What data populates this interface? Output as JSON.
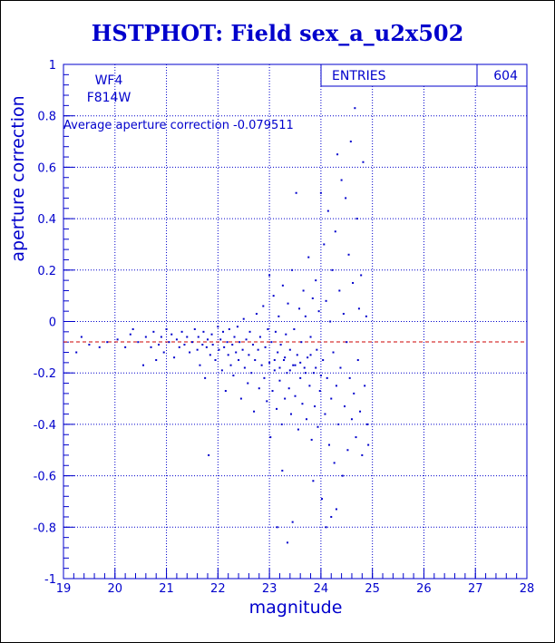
{
  "title": "HSTPHOT: Field sex_a_u2x502",
  "colors": {
    "axis": "#0000cc",
    "grid": "#0000cc",
    "points": "#0000cc",
    "average_line": "#cc0000",
    "background": "#ffffff"
  },
  "chart_data": {
    "type": "scatter",
    "title": "HSTPHOT: Field sex_a_u2x502",
    "xlabel": "magnitude",
    "ylabel": "aperture correction",
    "xlim": [
      19,
      28
    ],
    "ylim": [
      -1,
      1
    ],
    "x_ticks": [
      "19",
      "20",
      "21",
      "22",
      "23",
      "24",
      "25",
      "26",
      "27",
      "28"
    ],
    "y_ticks": [
      "-1",
      "-0.8",
      "-0.6",
      "-0.4",
      "-0.2",
      "0",
      "0.2",
      "0.4",
      "0.6",
      "0.8",
      "1"
    ],
    "grid": true,
    "annotations": {
      "chip": "WF4",
      "filter": "F814W",
      "average_text": "Average aperture correction -0.079511"
    },
    "stats": {
      "label": "ENTRIES",
      "value": "604"
    },
    "average_line_y": -0.079511,
    "points": [
      [
        19.25,
        -0.12
      ],
      [
        19.35,
        -0.06
      ],
      [
        19.5,
        -0.09
      ],
      [
        19.7,
        -0.1
      ],
      [
        19.85,
        -0.08
      ],
      [
        20.05,
        -0.07
      ],
      [
        20.2,
        -0.1
      ],
      [
        20.3,
        -0.05
      ],
      [
        20.35,
        -0.03
      ],
      [
        20.45,
        -0.08
      ],
      [
        20.55,
        -0.17
      ],
      [
        20.6,
        -0.06
      ],
      [
        20.7,
        -0.1
      ],
      [
        20.75,
        -0.04
      ],
      [
        20.8,
        -0.15
      ],
      [
        20.85,
        -0.09
      ],
      [
        20.9,
        -0.06
      ],
      [
        20.95,
        -0.12
      ],
      [
        21.0,
        -0.03
      ],
      [
        21.05,
        -0.08
      ],
      [
        21.1,
        -0.05
      ],
      [
        21.15,
        -0.14
      ],
      [
        21.2,
        -0.07
      ],
      [
        21.25,
        -0.1
      ],
      [
        21.3,
        -0.04
      ],
      [
        21.35,
        -0.09
      ],
      [
        21.4,
        -0.06
      ],
      [
        21.45,
        -0.12
      ],
      [
        21.5,
        -0.08
      ],
      [
        21.55,
        -0.03
      ],
      [
        21.6,
        -0.11
      ],
      [
        21.62,
        -0.06
      ],
      [
        21.65,
        -0.17
      ],
      [
        21.7,
        -0.09
      ],
      [
        21.72,
        -0.04
      ],
      [
        21.75,
        -0.22
      ],
      [
        21.78,
        -0.1
      ],
      [
        21.8,
        -0.07
      ],
      [
        21.82,
        -0.52
      ],
      [
        21.85,
        -0.13
      ],
      [
        21.88,
        -0.05
      ],
      [
        21.9,
        -0.09
      ],
      [
        21.95,
        -0.15
      ],
      [
        22.0,
        -0.02
      ],
      [
        22.02,
        -0.11
      ],
      [
        22.05,
        -0.07
      ],
      [
        22.08,
        -0.19
      ],
      [
        22.1,
        -0.04
      ],
      [
        22.12,
        -0.1
      ],
      [
        22.15,
        -0.27
      ],
      [
        22.18,
        -0.08
      ],
      [
        22.2,
        -0.13
      ],
      [
        22.22,
        -0.03
      ],
      [
        22.25,
        -0.17
      ],
      [
        22.28,
        -0.09
      ],
      [
        22.3,
        -0.21
      ],
      [
        22.32,
        -0.06
      ],
      [
        22.35,
        -0.12
      ],
      [
        22.38,
        -0.02
      ],
      [
        22.4,
        -0.15
      ],
      [
        22.42,
        -0.08
      ],
      [
        22.45,
        -0.3
      ],
      [
        22.48,
        -0.11
      ],
      [
        22.5,
        0.01
      ],
      [
        22.52,
        -0.18
      ],
      [
        22.55,
        -0.07
      ],
      [
        22.58,
        -0.24
      ],
      [
        22.6,
        -0.13
      ],
      [
        22.62,
        -0.04
      ],
      [
        22.65,
        -0.2
      ],
      [
        22.68,
        -0.09
      ],
      [
        22.7,
        -0.35
      ],
      [
        22.72,
        -0.15
      ],
      [
        22.75,
        0.03
      ],
      [
        22.78,
        -0.11
      ],
      [
        22.8,
        -0.26
      ],
      [
        22.82,
        -0.06
      ],
      [
        22.85,
        -0.17
      ],
      [
        22.88,
        0.06
      ],
      [
        22.9,
        -0.22
      ],
      [
        22.92,
        -0.1
      ],
      [
        22.95,
        -0.31
      ],
      [
        22.97,
        -0.03
      ],
      [
        23.0,
        -0.16
      ],
      [
        23.0,
        0.18
      ],
      [
        23.02,
        -0.45
      ],
      [
        23.04,
        -0.08
      ],
      [
        23.06,
        -0.27
      ],
      [
        23.08,
        0.1
      ],
      [
        23.1,
        -0.19
      ],
      [
        23.12,
        -0.04
      ],
      [
        23.14,
        -0.34
      ],
      [
        23.16,
        -0.12
      ],
      [
        23.18,
        0.02
      ],
      [
        23.2,
        -0.23
      ],
      [
        23.22,
        -0.09
      ],
      [
        23.24,
        -0.4
      ],
      [
        23.26,
        0.14
      ],
      [
        23.28,
        -0.15
      ],
      [
        23.3,
        -0.3
      ],
      [
        23.32,
        -0.05
      ],
      [
        23.34,
        -0.2
      ],
      [
        23.36,
        0.07
      ],
      [
        23.38,
        -0.26
      ],
      [
        23.4,
        -0.11
      ],
      [
        23.42,
        -0.36
      ],
      [
        23.44,
        0.2
      ],
      [
        23.46,
        -0.17
      ],
      [
        23.48,
        -0.03
      ],
      [
        23.5,
        -0.29
      ],
      [
        23.52,
        0.5
      ],
      [
        23.54,
        -0.13
      ],
      [
        23.56,
        -0.42
      ],
      [
        23.58,
        0.05
      ],
      [
        23.6,
        -0.22
      ],
      [
        23.62,
        -0.08
      ],
      [
        23.64,
        -0.32
      ],
      [
        23.66,
        0.12
      ],
      [
        23.68,
        -0.18
      ],
      [
        23.7,
        0.02
      ],
      [
        23.72,
        -0.38
      ],
      [
        23.74,
        -0.14
      ],
      [
        23.76,
        0.25
      ],
      [
        23.78,
        -0.25
      ],
      [
        23.8,
        -0.06
      ],
      [
        23.82,
        -0.46
      ],
      [
        23.84,
        0.09
      ],
      [
        23.86,
        -0.2
      ],
      [
        23.88,
        -0.33
      ],
      [
        23.9,
        0.16
      ],
      [
        23.92,
        -0.11
      ],
      [
        23.94,
        -0.41
      ],
      [
        23.96,
        0.04
      ],
      [
        23.98,
        -0.27
      ],
      [
        24.0,
        0.5
      ],
      [
        24.02,
        -0.69
      ],
      [
        24.04,
        -0.15
      ],
      [
        24.06,
        0.3
      ],
      [
        24.08,
        -0.36
      ],
      [
        24.1,
        0.08
      ],
      [
        24.12,
        -0.22
      ],
      [
        24.14,
        0.43
      ],
      [
        24.16,
        -0.48
      ],
      [
        24.18,
        0.0
      ],
      [
        24.2,
        -0.3
      ],
      [
        24.22,
        0.2
      ],
      [
        24.24,
        -0.12
      ],
      [
        24.26,
        -0.55
      ],
      [
        24.28,
        0.35
      ],
      [
        24.3,
        -0.25
      ],
      [
        24.32,
        0.65
      ],
      [
        24.34,
        -0.4
      ],
      [
        24.36,
        0.12
      ],
      [
        24.38,
        -0.18
      ],
      [
        24.4,
        0.55
      ],
      [
        24.42,
        -0.6
      ],
      [
        24.44,
        0.03
      ],
      [
        24.46,
        -0.33
      ],
      [
        24.48,
        0.48
      ],
      [
        24.5,
        -0.08
      ],
      [
        24.52,
        -0.5
      ],
      [
        24.54,
        0.26
      ],
      [
        24.56,
        -0.22
      ],
      [
        24.58,
        0.7
      ],
      [
        24.6,
        -0.38
      ],
      [
        24.62,
        0.15
      ],
      [
        24.64,
        -0.28
      ],
      [
        24.66,
        0.83
      ],
      [
        24.68,
        -0.45
      ],
      [
        24.7,
        0.4
      ],
      [
        24.72,
        -0.15
      ],
      [
        24.74,
        0.05
      ],
      [
        24.76,
        -0.35
      ],
      [
        24.78,
        0.18
      ],
      [
        24.8,
        -0.52
      ],
      [
        24.82,
        0.62
      ],
      [
        24.85,
        -0.25
      ],
      [
        24.88,
        0.02
      ],
      [
        24.9,
        -0.4
      ],
      [
        24.92,
        -0.48
      ],
      [
        23.1,
        -0.15
      ],
      [
        23.2,
        -0.18
      ],
      [
        23.3,
        -0.14
      ],
      [
        23.4,
        -0.19
      ],
      [
        23.5,
        -0.17
      ],
      [
        23.6,
        -0.16
      ],
      [
        23.7,
        -0.2
      ],
      [
        23.8,
        -0.13
      ],
      [
        23.9,
        -0.18
      ],
      [
        24.0,
        -0.21
      ],
      [
        23.15,
        -0.8
      ],
      [
        23.35,
        -0.86
      ],
      [
        23.45,
        -0.78
      ],
      [
        24.1,
        -0.8
      ],
      [
        24.2,
        -0.76
      ],
      [
        24.3,
        -0.73
      ],
      [
        23.25,
        -0.58
      ],
      [
        23.85,
        -0.62
      ]
    ]
  }
}
